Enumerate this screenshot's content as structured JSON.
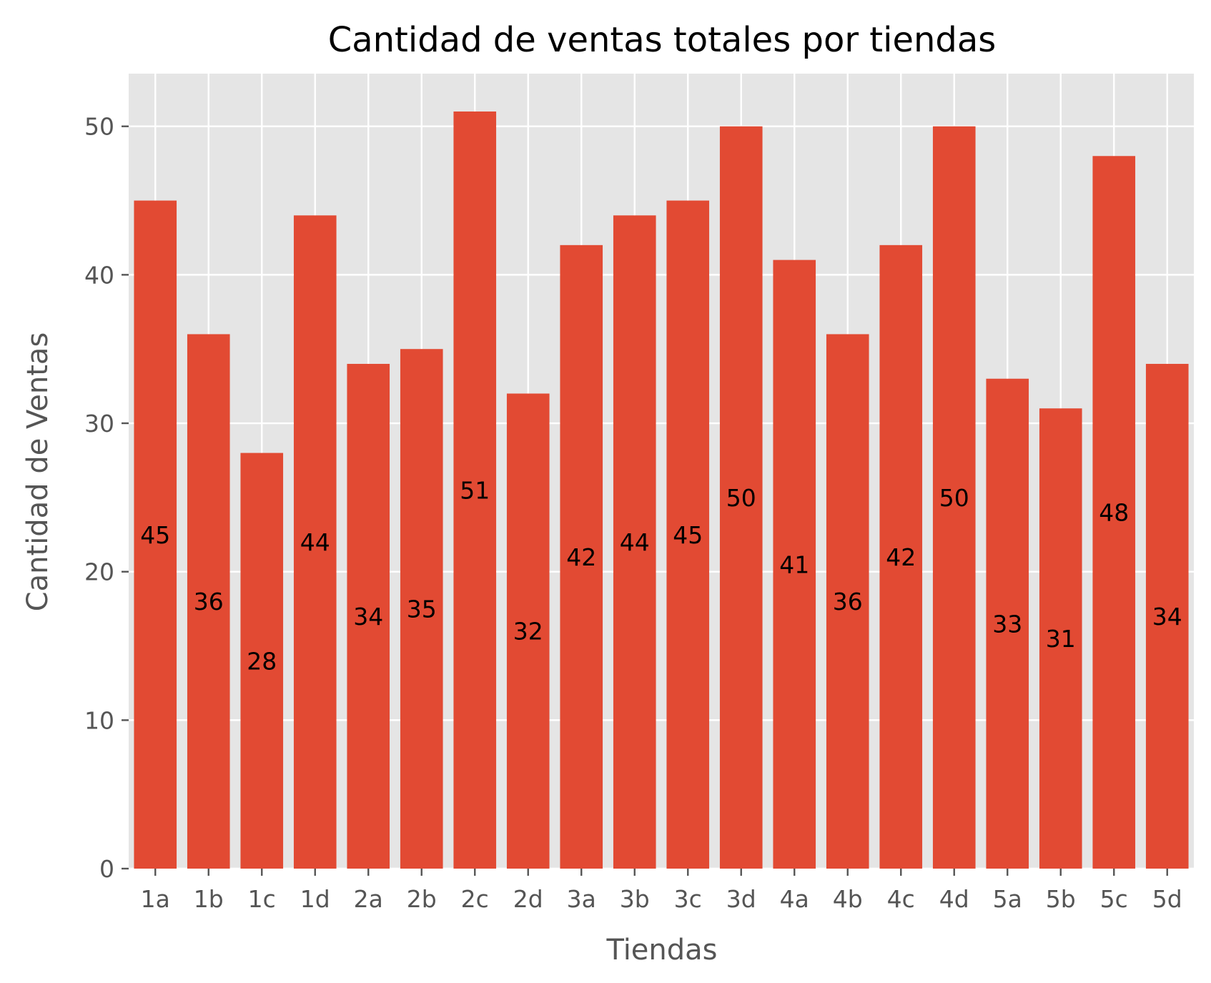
{
  "colors": {
    "bar": "#E24A33",
    "plot_bg": "#E5E5E5",
    "grid": "#FFFFFF",
    "tick": "#555555",
    "text": "#000000"
  },
  "chart_data": {
    "type": "bar",
    "title": "Cantidad de ventas totales por tiendas",
    "xlabel": "Tiendas",
    "ylabel": "Cantidad de Ventas",
    "categories": [
      "1a",
      "1b",
      "1c",
      "1d",
      "2a",
      "2b",
      "2c",
      "2d",
      "3a",
      "3b",
      "3c",
      "3d",
      "4a",
      "4b",
      "4c",
      "4d",
      "5a",
      "5b",
      "5c",
      "5d"
    ],
    "values": [
      45,
      36,
      28,
      44,
      34,
      35,
      51,
      32,
      42,
      44,
      45,
      50,
      41,
      36,
      42,
      50,
      33,
      31,
      48,
      34
    ],
    "ylim": [
      0,
      53.55
    ],
    "yticks": [
      0,
      10,
      20,
      30,
      40,
      50
    ],
    "grid": true,
    "bar_labels": "middle"
  }
}
